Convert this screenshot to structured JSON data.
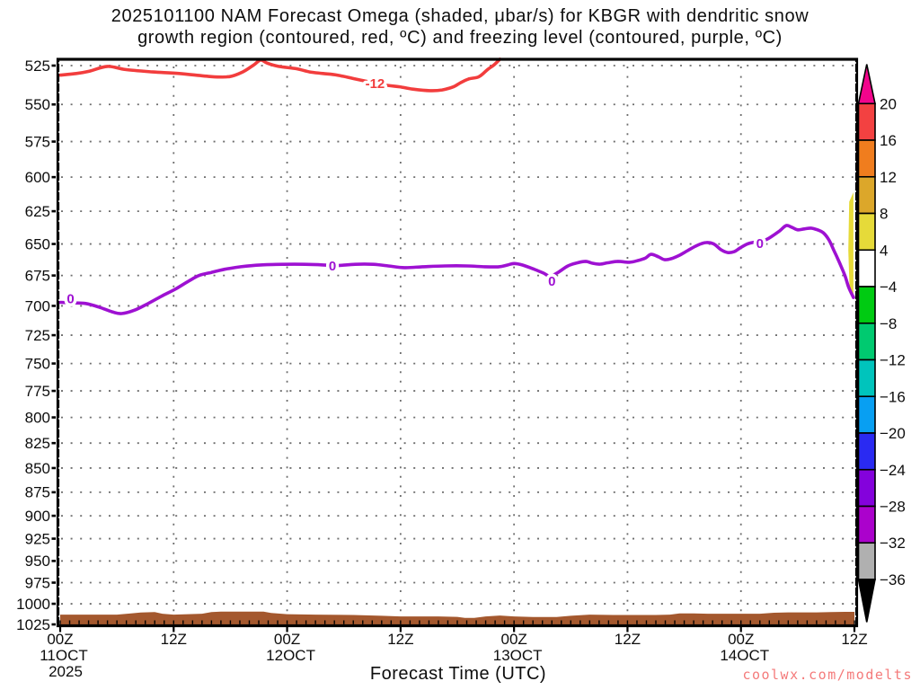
{
  "title_line1": "2025101100 NAM Forecast Omega (shaded, μbar/s) for KBGR with dendritic snow",
  "title_line2": "growth region (contoured, red, ºC) and freezing level (contoured, purple, ºC)",
  "x_axis_title": "Forecast Time (UTC)",
  "watermark": "coolwx.com/modelts",
  "chart_data": {
    "type": "line",
    "title": "2025101100 NAM Forecast Omega (shaded, μbar/s) for KBGR with dendritic snow growth region (contoured, red, ºC) and freezing level (contoured, purple, ºC)",
    "xlabel": "Forecast Time (UTC)",
    "ylabel": "",
    "x_axis": {
      "unit": "forecast hour from 2025-10-11 00Z",
      "range": [
        0,
        84
      ],
      "major_tick_hours": 12,
      "minor_tick_hours": 1,
      "ticks": [
        {
          "hour": 0,
          "label": "00Z",
          "date": "11OCT",
          "year": "2025"
        },
        {
          "hour": 12,
          "label": "12Z"
        },
        {
          "hour": 24,
          "label": "00Z",
          "date": "12OCT"
        },
        {
          "hour": 36,
          "label": "12Z"
        },
        {
          "hour": 48,
          "label": "00Z",
          "date": "13OCT"
        },
        {
          "hour": 60,
          "label": "12Z"
        },
        {
          "hour": 72,
          "label": "00Z",
          "date": "14OCT"
        },
        {
          "hour": 84,
          "label": "12Z"
        }
      ]
    },
    "y_axis": {
      "unit": "hPa",
      "scale": "log",
      "range": [
        525,
        1025
      ],
      "ticks": [
        525,
        550,
        575,
        600,
        625,
        650,
        675,
        700,
        725,
        750,
        775,
        800,
        825,
        850,
        875,
        900,
        925,
        950,
        975,
        1000,
        1025
      ]
    },
    "grid": "dotted",
    "series": [
      {
        "name": "dendritic-growth-contour-minus12C",
        "label": "-12",
        "color": "#f23d3d",
        "label_points": [
          [
            33.3,
            536.5
          ]
        ],
        "points": [
          [
            0,
            531
          ],
          [
            1.7,
            530
          ],
          [
            3.1,
            528.5
          ],
          [
            5,
            525.5
          ],
          [
            6.9,
            527.5
          ],
          [
            9.8,
            529
          ],
          [
            12.6,
            530
          ],
          [
            16,
            532
          ],
          [
            17.9,
            532
          ],
          [
            19.3,
            529
          ],
          [
            20.5,
            524.5
          ],
          [
            21.2,
            521.5
          ],
          [
            21.9,
            523.5
          ],
          [
            23.1,
            525.5
          ],
          [
            25,
            527
          ],
          [
            26.4,
            529
          ],
          [
            27.8,
            530
          ],
          [
            29.3,
            531
          ],
          [
            31.2,
            533.5
          ],
          [
            32.4,
            535
          ],
          [
            34.5,
            537.5
          ],
          [
            35.9,
            538.5
          ],
          [
            37.3,
            540
          ],
          [
            39.1,
            541
          ],
          [
            40.4,
            540.5
          ],
          [
            41.6,
            538.5
          ],
          [
            42.3,
            536
          ],
          [
            43.2,
            533.5
          ],
          [
            44.3,
            532
          ],
          [
            45.2,
            527.5
          ],
          [
            45.9,
            524.5
          ],
          [
            46.5,
            521
          ]
        ]
      },
      {
        "name": "freezing-level-contour-0C",
        "label": "0",
        "color": "#9e11d2",
        "label_points": [
          [
            1.1,
            694
          ],
          [
            28.8,
            667.3
          ],
          [
            52,
            679.8
          ],
          [
            74,
            649.5
          ]
        ],
        "points": [
          [
            0,
            697
          ],
          [
            1.2,
            697.5
          ],
          [
            2.7,
            698
          ],
          [
            4.1,
            701
          ],
          [
            5.5,
            705
          ],
          [
            6.5,
            706.5
          ],
          [
            7.9,
            703.5
          ],
          [
            9.3,
            698
          ],
          [
            10.7,
            692
          ],
          [
            12.2,
            686
          ],
          [
            13.6,
            679.5
          ],
          [
            14.7,
            675
          ],
          [
            16,
            672.5
          ],
          [
            17.4,
            670
          ],
          [
            19.1,
            668
          ],
          [
            21.2,
            666.5
          ],
          [
            23.6,
            666
          ],
          [
            25.9,
            666
          ],
          [
            27.8,
            666.5
          ],
          [
            29.3,
            667
          ],
          [
            31.2,
            666
          ],
          [
            33.1,
            666
          ],
          [
            34.7,
            667.3
          ],
          [
            36.4,
            668.7
          ],
          [
            38.3,
            668
          ],
          [
            40.7,
            667.3
          ],
          [
            43,
            667.3
          ],
          [
            44.9,
            668
          ],
          [
            46.4,
            668
          ],
          [
            47.3,
            666.6
          ],
          [
            48,
            665.4
          ],
          [
            48.9,
            666.6
          ],
          [
            50.2,
            670.2
          ],
          [
            51.1,
            673
          ],
          [
            51.8,
            675.5
          ],
          [
            52.7,
            672.3
          ],
          [
            53.7,
            667.3
          ],
          [
            54.7,
            664.8
          ],
          [
            55.6,
            663.7
          ],
          [
            56.3,
            665.2
          ],
          [
            57.1,
            665.9
          ],
          [
            57.9,
            664.8
          ],
          [
            59,
            663.7
          ],
          [
            60.2,
            664.4
          ],
          [
            61.1,
            663
          ],
          [
            61.9,
            661
          ],
          [
            62.5,
            658.1
          ],
          [
            63.3,
            660.2
          ],
          [
            63.9,
            662.3
          ],
          [
            64.6,
            661.6
          ],
          [
            65.5,
            658.8
          ],
          [
            66.4,
            655
          ],
          [
            67.4,
            651
          ],
          [
            68.3,
            648.9
          ],
          [
            69.1,
            649.9
          ],
          [
            69.9,
            654.5
          ],
          [
            70.6,
            656.7
          ],
          [
            71.3,
            656
          ],
          [
            71.9,
            653.1
          ],
          [
            72.7,
            649.9
          ],
          [
            73.5,
            648.5
          ],
          [
            74.6,
            646.8
          ],
          [
            75.4,
            643.4
          ],
          [
            76.1,
            639.8
          ],
          [
            76.8,
            635.8
          ],
          [
            77.4,
            637.2
          ],
          [
            78,
            639.1
          ],
          [
            78.7,
            638.4
          ],
          [
            79.4,
            637.8
          ],
          [
            80.1,
            639.1
          ],
          [
            80.7,
            641.3
          ],
          [
            81.3,
            646.8
          ],
          [
            81.8,
            654.5
          ],
          [
            82.4,
            664.4
          ],
          [
            83,
            675.2
          ],
          [
            83.4,
            684.8
          ],
          [
            83.9,
            693
          ]
        ]
      }
    ],
    "terrain": {
      "name": "surface-terrain",
      "color": "#a4582e",
      "base_pressure": 1025,
      "top_points": [
        [
          0,
          1013
        ],
        [
          3,
          1013
        ],
        [
          6,
          1013
        ],
        [
          7.5,
          1011.5
        ],
        [
          8.5,
          1010.5
        ],
        [
          10,
          1010
        ],
        [
          10.8,
          1012
        ],
        [
          12,
          1013
        ],
        [
          15,
          1012
        ],
        [
          16,
          1010
        ],
        [
          17,
          1009.5
        ],
        [
          21.5,
          1009.5
        ],
        [
          22.3,
          1011
        ],
        [
          24,
          1012.5
        ],
        [
          27,
          1013
        ],
        [
          31,
          1013.5
        ],
        [
          34,
          1014.5
        ],
        [
          36,
          1015.2
        ],
        [
          40,
          1015.2
        ],
        [
          42,
          1015.8
        ],
        [
          42.8,
          1017
        ],
        [
          43.8,
          1017
        ],
        [
          45,
          1015.2
        ],
        [
          46.5,
          1014.1
        ],
        [
          48,
          1015.2
        ],
        [
          50,
          1016
        ],
        [
          52.5,
          1016
        ],
        [
          54,
          1014.5
        ],
        [
          56,
          1013
        ],
        [
          58.5,
          1013.5
        ],
        [
          61,
          1013.5
        ],
        [
          63,
          1013.5
        ],
        [
          64.5,
          1013
        ],
        [
          65.5,
          1011.5
        ],
        [
          67,
          1011.5
        ],
        [
          68.5,
          1012
        ],
        [
          71,
          1012
        ],
        [
          74,
          1012
        ],
        [
          75.5,
          1010.8
        ],
        [
          77,
          1010.3
        ],
        [
          80,
          1010.3
        ],
        [
          81.5,
          1010
        ],
        [
          83,
          1009.7
        ],
        [
          84,
          1009.7
        ]
      ]
    },
    "shading_patches": [
      {
        "name": "omega-positive-sliver",
        "color": "#e6da39",
        "polygon": [
          [
            83.45,
            618
          ],
          [
            83.9,
            611
          ],
          [
            83.9,
            693
          ],
          [
            83.5,
            688
          ],
          [
            83.35,
            655
          ]
        ]
      }
    ],
    "colorbar": {
      "unit": "μbar/s",
      "over_color": "#f2058c",
      "under_color": "#000000",
      "boundary_labels": [
        "20",
        "16",
        "12",
        "8",
        "4",
        "−4",
        "−8",
        "−12",
        "−16",
        "−20",
        "−24",
        "−28",
        "−32",
        "−36"
      ],
      "band_colors": [
        "#f34141",
        "#f07d1e",
        "#dca72a",
        "#e6da39",
        "#ffffff",
        "#00cb12",
        "#00ca70",
        "#00c4bc",
        "#089ff2",
        "#2a2af2",
        "#8402dc",
        "#ab02cc",
        "#b0b0b0"
      ]
    }
  }
}
